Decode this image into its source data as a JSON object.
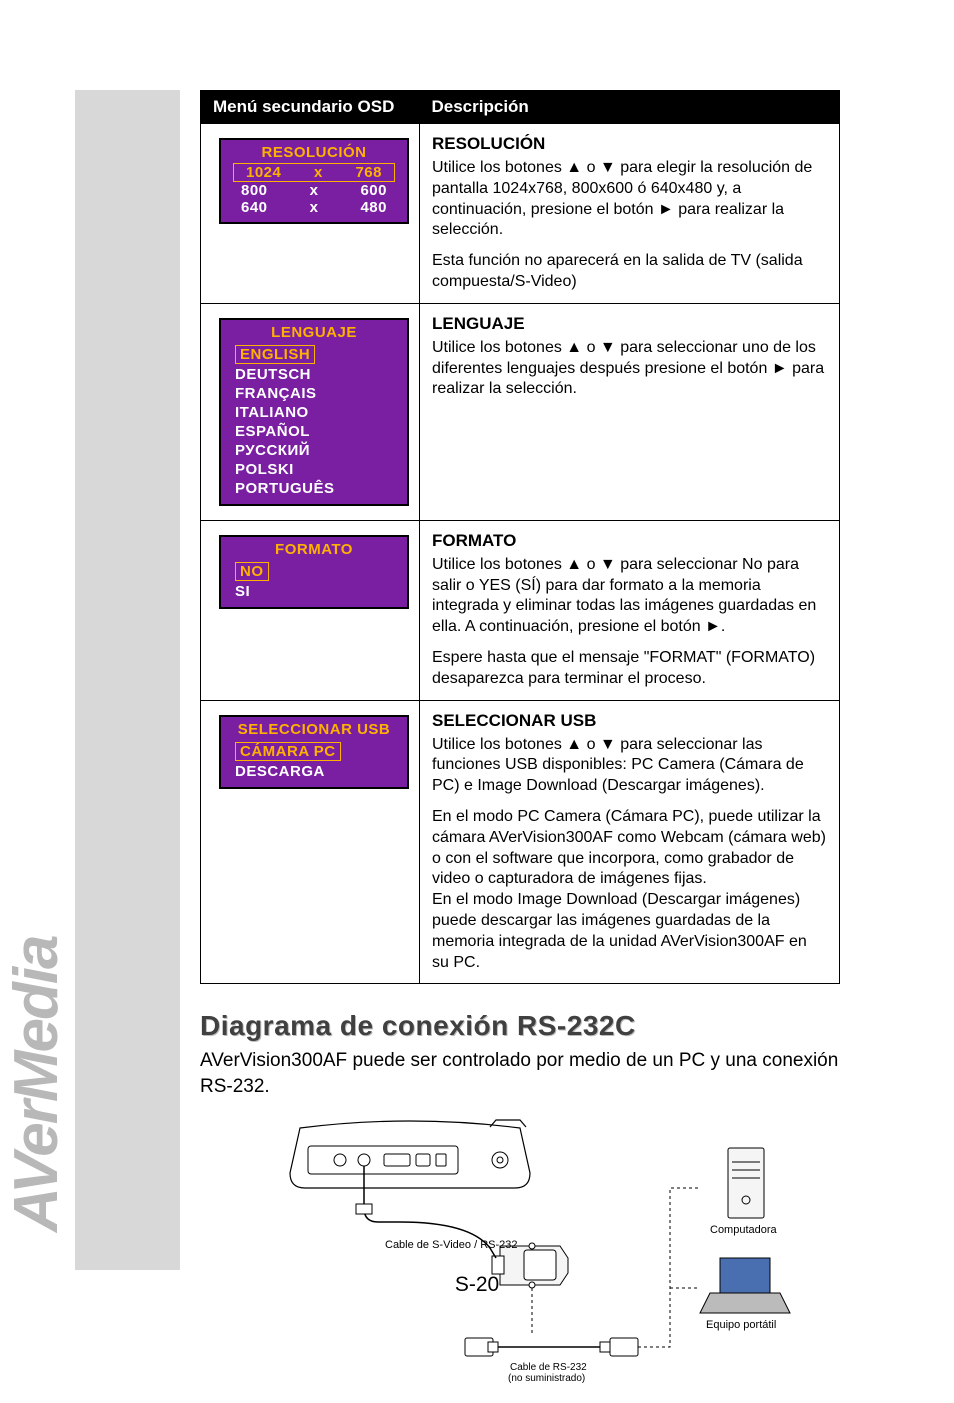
{
  "brand": "AVerMedia",
  "table": {
    "headers": [
      "Menú secundario OSD",
      "Descripción"
    ],
    "rows": [
      {
        "osd": {
          "title": "RESOLUCIÓN",
          "items": [
            {
              "cols": [
                "1024",
                "x",
                "768"
              ],
              "selected": true
            },
            {
              "cols": [
                "800",
                "x",
                "600"
              ],
              "selected": false
            },
            {
              "cols": [
                "640",
                "x",
                "480"
              ],
              "selected": false
            }
          ],
          "bg": "#7a1fa2",
          "title_color": "#ffb100",
          "text_color": "#ffffff"
        },
        "desc": {
          "title": "RESOLUCIÓN",
          "paragraphs": [
            "Utilice los botones ▲ o ▼ para elegir la resolución de pantalla 1024x768, 800x600 ó 640x480 y, a continuación, presione el botón ► para realizar la selección.",
            "Esta función no aparecerá en la salida de TV (salida compuesta/S-Video)"
          ]
        }
      },
      {
        "osd": {
          "title": "LENGUAJE",
          "items": [
            {
              "label": "ENGLISH",
              "selected": true
            },
            {
              "label": "DEUTSCH"
            },
            {
              "label": "FRANÇAIS"
            },
            {
              "label": "ITALIANO"
            },
            {
              "label": "ESPAÑOL"
            },
            {
              "label": "РУССКИЙ"
            },
            {
              "label": "POLSKI"
            },
            {
              "label": "PORTUGUÊS"
            }
          ]
        },
        "desc": {
          "title": "LENGUAJE",
          "paragraphs": [
            "Utilice los botones ▲ o ▼ para seleccionar uno de los diferentes lenguajes después presione el botón ► para realizar la selección."
          ]
        }
      },
      {
        "osd": {
          "title": "FORMATO",
          "items": [
            {
              "label": "NO",
              "selected": true
            },
            {
              "label": "SI"
            }
          ]
        },
        "desc": {
          "title": "FORMATO",
          "paragraphs": [
            "Utilice los botones ▲ o ▼ para seleccionar No para salir o YES (SÍ) para dar formato a la memoria integrada y eliminar todas las imágenes guardadas en ella. A continuación, presione el botón ►.",
            "Espere hasta que el mensaje \"FORMAT\" (FORMATO) desaparezca para terminar el proceso."
          ]
        }
      },
      {
        "osd": {
          "title": "SELECCIONAR USB",
          "items": [
            {
              "label": "CÁMARA PC",
              "selected": true
            },
            {
              "label": "DESCARGA"
            }
          ]
        },
        "desc": {
          "title": "SELECCIONAR USB",
          "paragraphs": [
            "Utilice los botones ▲ o ▼ para seleccionar las funciones USB disponibles: PC Camera (Cámara de PC) e Image Download (Descargar imágenes).",
            "En el modo PC Camera (Cámara PC), puede utilizar la cámara AVerVision300AF como Webcam (cámara web) o con el software que incorpora, como grabador de video o capturadora de imágenes fijas.\nEn el modo Image Download (Descargar imágenes) puede descargar las imágenes guardadas de la memoria integrada de la unidad AVerVision300AF en su PC."
          ]
        }
      }
    ]
  },
  "section_title": "Diagrama de conexión RS-232C",
  "intro_text": "AVerVision300AF puede ser controlado por medio de un PC y una conexión RS-232.",
  "diagram": {
    "svideo_label": "Cable de S-Video / RS-232",
    "rs232_label": "Cable de RS-232",
    "rs232_sub": "(no suministrado)",
    "computer_label": "Computadora",
    "laptop_label": "Equipo portátil",
    "stroke": "#000000",
    "fill_light": "#f5f5f5",
    "fill_dark": "#808080",
    "laptop_screen": "#4a6fb0"
  },
  "page_number": "S-20"
}
